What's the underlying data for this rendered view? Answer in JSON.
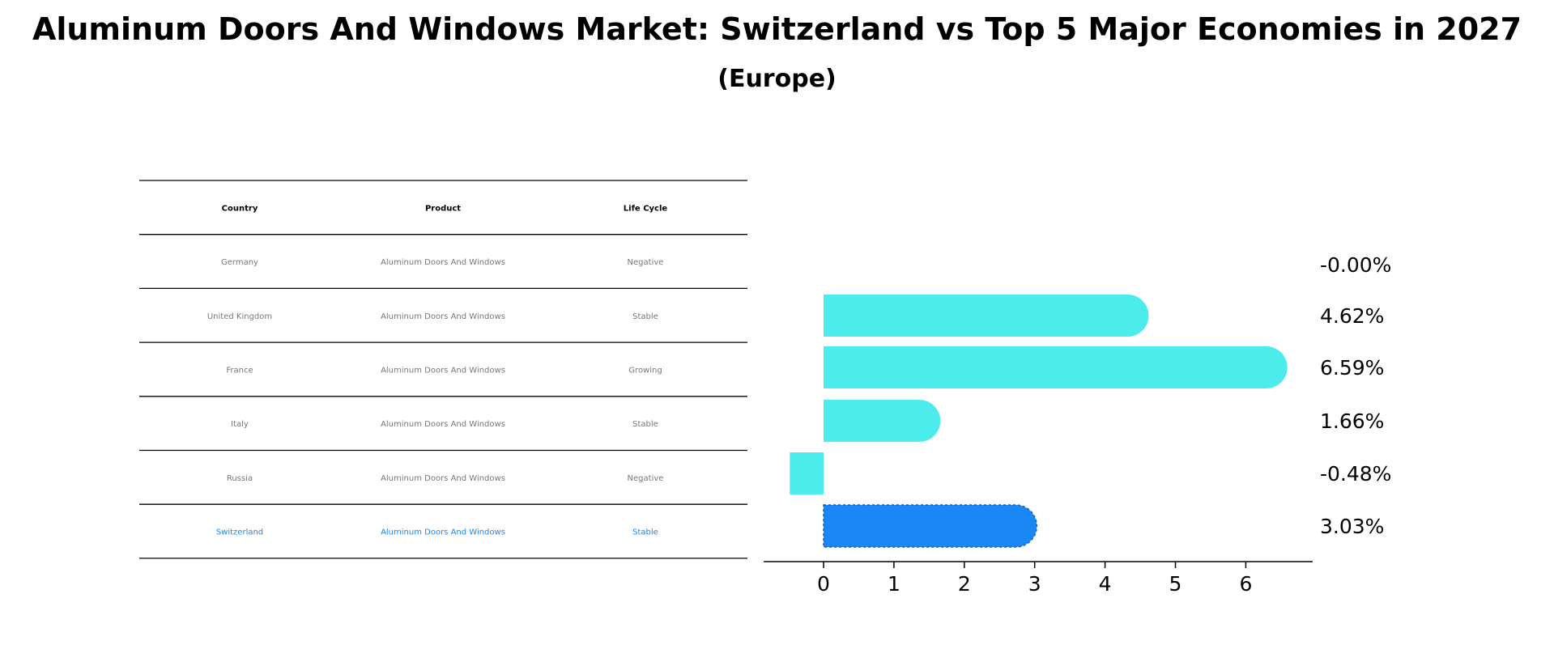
{
  "title": "Aluminum Doors And Windows Market: Switzerland vs Top 5 Major Economies in 2027",
  "subtitle": "(Europe)",
  "table": {
    "headers": [
      "Country",
      "Product",
      "Life Cycle"
    ],
    "rows": [
      [
        "Germany",
        "Aluminum Doors And Windows",
        "Negative"
      ],
      [
        "United Kingdom",
        "Aluminum Doors And Windows",
        "Stable"
      ],
      [
        "France",
        "Aluminum Doors And Windows",
        "Growing"
      ],
      [
        "Italy",
        "Aluminum Doors And Windows",
        "Stable"
      ],
      [
        "Russia",
        "Aluminum Doors And Windows",
        "Negative"
      ],
      [
        "Switzerland",
        "Aluminum Doors And Windows",
        "Stable"
      ]
    ],
    "highlight_row": 5
  },
  "chart_data": {
    "type": "bar",
    "orientation": "horizontal",
    "categories": [
      "Germany",
      "United Kingdom",
      "France",
      "Italy",
      "Russia",
      "Switzerland"
    ],
    "values": [
      -0.0,
      4.62,
      6.59,
      1.66,
      -0.48,
      3.03
    ],
    "value_labels": [
      "-0.00%",
      "4.62%",
      "6.59%",
      "1.66%",
      "-0.48%",
      "3.03%"
    ],
    "highlight": "Switzerland",
    "xlim": [
      -0.85,
      6.95
    ],
    "xticks": [
      0,
      1,
      2,
      3,
      4,
      5,
      6
    ],
    "xtick_labels": [
      "0",
      "1",
      "2",
      "3",
      "4",
      "5",
      "6"
    ],
    "colors": {
      "default": "#4cecec",
      "highlight": "#1a87f5",
      "table_text": "#777777",
      "table_header": "#000000",
      "highlight_text": "#1a87f5"
    }
  }
}
